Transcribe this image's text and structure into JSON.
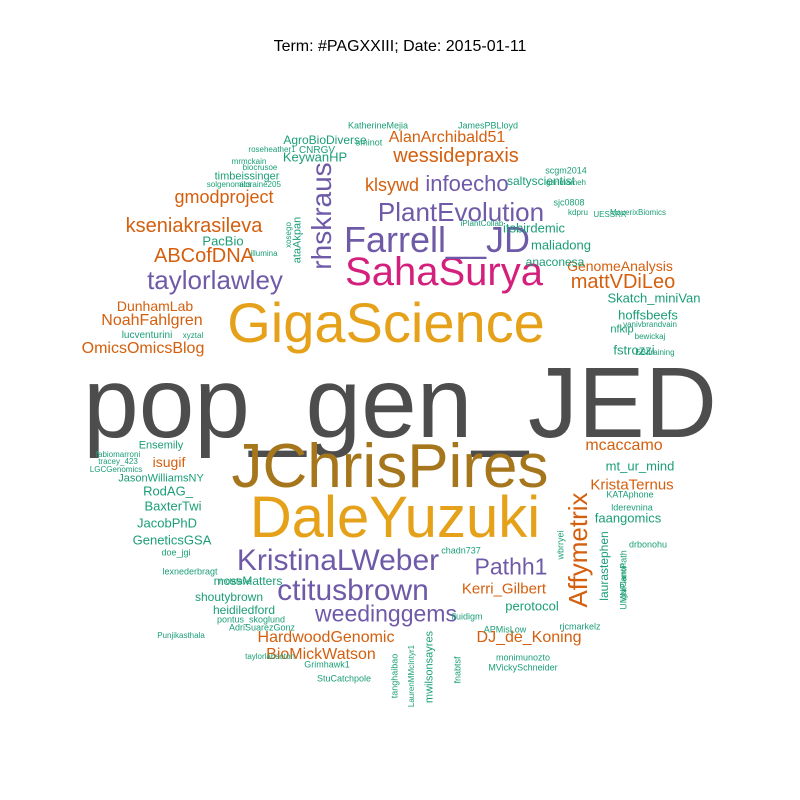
{
  "title": "Term: #PAGXXIII; Date: 2015-01-11",
  "colors": {
    "gray": "#4d4d4d",
    "orange": "#e6a11a",
    "brown": "#a6761d",
    "purple": "#6f5aa8",
    "magenta": "#d4207c",
    "rust": "#d45f0e",
    "green": "#1b9e77"
  },
  "words": [
    {
      "text": "pop_gen_JED",
      "color": "gray"
    },
    {
      "text": "JChrisPires",
      "color": "brown"
    },
    {
      "text": "DaleYuzuki",
      "color": "orange"
    },
    {
      "text": "GigaScience",
      "color": "orange"
    },
    {
      "text": "SahaSurya",
      "color": "magenta"
    },
    {
      "text": "Farrell__JD",
      "color": "purple"
    },
    {
      "text": "KristinaLWeber",
      "color": "purple"
    },
    {
      "text": "ctitusbrown",
      "color": "purple"
    },
    {
      "text": "taylorlawley",
      "color": "purple"
    },
    {
      "text": "PlantEvolution",
      "color": "purple"
    },
    {
      "text": "rhskraus",
      "color": "purple"
    },
    {
      "text": "weedinggems",
      "color": "purple"
    },
    {
      "text": "Affymetrix",
      "color": "rust"
    },
    {
      "text": "Pathh1",
      "color": "purple"
    },
    {
      "text": "infoecho",
      "color": "purple"
    },
    {
      "text": "kseniakrasileva",
      "color": "rust"
    },
    {
      "text": "ABCofDNA",
      "color": "rust"
    },
    {
      "text": "wessidepraxis",
      "color": "rust"
    },
    {
      "text": "mattVDiLeo",
      "color": "rust"
    },
    {
      "text": "gmodproject",
      "color": "rust"
    },
    {
      "text": "klsywd",
      "color": "rust"
    },
    {
      "text": "AlanArchibald51",
      "color": "rust"
    },
    {
      "text": "OmicsOmicsBlog",
      "color": "rust"
    },
    {
      "text": "NoahFahlgren",
      "color": "rust"
    },
    {
      "text": "mcaccamo",
      "color": "rust"
    },
    {
      "text": "HardwoodGenomic",
      "color": "rust"
    },
    {
      "text": "BioMickWatson",
      "color": "rust"
    },
    {
      "text": "DJ_de_Koning",
      "color": "rust"
    },
    {
      "text": "KristaTernus",
      "color": "rust"
    },
    {
      "text": "Kerri_Gilbert",
      "color": "rust"
    },
    {
      "text": "isugif",
      "color": "rust"
    },
    {
      "text": "DunhamLab",
      "color": "rust"
    },
    {
      "text": "GenomeAnalysis",
      "color": "rust"
    },
    {
      "text": "KeywanHP",
      "color": "green"
    },
    {
      "text": "itsbirdemic",
      "color": "green"
    },
    {
      "text": "PacBio",
      "color": "green"
    },
    {
      "text": "maliadong",
      "color": "green"
    },
    {
      "text": "mt_ur_mind",
      "color": "green"
    },
    {
      "text": "faangomics",
      "color": "green"
    },
    {
      "text": "BaxterTwi",
      "color": "green"
    },
    {
      "text": "JacobPhD",
      "color": "green"
    },
    {
      "text": "GeneticsGSA",
      "color": "green"
    },
    {
      "text": "RodAG_",
      "color": "green"
    },
    {
      "text": "perotocol",
      "color": "green"
    },
    {
      "text": "fstrozzi",
      "color": "green"
    },
    {
      "text": "hoffsbeefs",
      "color": "green"
    },
    {
      "text": "Skatch_miniVan",
      "color": "green"
    },
    {
      "text": "AgroBioDiverse",
      "color": "green"
    },
    {
      "text": "saltyscientist",
      "color": "green"
    },
    {
      "text": "anaconesa",
      "color": "green"
    },
    {
      "text": "laurastephen",
      "color": "green"
    },
    {
      "text": "shoutybrown",
      "color": "green"
    },
    {
      "text": "heidiledford",
      "color": "green"
    },
    {
      "text": "mossMatters",
      "color": "green"
    },
    {
      "text": "JasonWilliamsNY",
      "color": "green"
    },
    {
      "text": "Ensemily",
      "color": "green"
    },
    {
      "text": "timbeissinger",
      "color": "green"
    },
    {
      "text": "nfkip",
      "color": "green"
    },
    {
      "text": "CNRGV",
      "color": "green"
    },
    {
      "text": "KatherineMejia",
      "color": "green"
    },
    {
      "text": "JamesPBLloyd",
      "color": "green"
    },
    {
      "text": "sminot",
      "color": "green"
    },
    {
      "text": "roseheather1",
      "color": "green"
    },
    {
      "text": "mrmckain",
      "color": "green"
    },
    {
      "text": "biocrusoe",
      "color": "green"
    },
    {
      "text": "solgenomics",
      "color": "green"
    },
    {
      "text": "aloraine205",
      "color": "green"
    },
    {
      "text": "scgm2014",
      "color": "green"
    },
    {
      "text": "garimameh",
      "color": "green"
    },
    {
      "text": "sjc0808",
      "color": "green"
    },
    {
      "text": "kdpru",
      "color": "green"
    },
    {
      "text": "UESSRR",
      "color": "green"
    },
    {
      "text": "iPlantCollab",
      "color": "green"
    },
    {
      "text": "ataAkpan",
      "color": "green"
    },
    {
      "text": "xosego",
      "color": "green"
    },
    {
      "text": "illumina",
      "color": "green"
    },
    {
      "text": "MaverixBiomics",
      "color": "green"
    },
    {
      "text": "yanivbrandvain",
      "color": "green"
    },
    {
      "text": "bewickaj",
      "color": "green"
    },
    {
      "text": "EBItraining",
      "color": "green"
    },
    {
      "text": "lucventurini",
      "color": "green"
    },
    {
      "text": "xyztal",
      "color": "green"
    },
    {
      "text": "fabiomarroni",
      "color": "green"
    },
    {
      "text": "tracey_423",
      "color": "green"
    },
    {
      "text": "LGCGenomics",
      "color": "green"
    },
    {
      "text": "doe_jgi",
      "color": "green"
    },
    {
      "text": "lexnederbragt",
      "color": "green"
    },
    {
      "text": "mclafave",
      "color": "green"
    },
    {
      "text": "pontus_skoglund",
      "color": "green"
    },
    {
      "text": "AdriSuarezGonz",
      "color": "green"
    },
    {
      "text": "Punjikasthala",
      "color": "green"
    },
    {
      "text": "taylorlabsoton",
      "color": "green"
    },
    {
      "text": "Grimhawk1",
      "color": "green"
    },
    {
      "text": "StuCatchpole",
      "color": "green"
    },
    {
      "text": "chadn737",
      "color": "green"
    },
    {
      "text": "fluidigm",
      "color": "green"
    },
    {
      "text": "APMisLow",
      "color": "green"
    },
    {
      "text": "rjcmarkelz",
      "color": "green"
    },
    {
      "text": "monimunozto",
      "color": "green"
    },
    {
      "text": "MVickySchneider",
      "color": "green"
    },
    {
      "text": "KATAphone",
      "color": "green"
    },
    {
      "text": "lderevnina",
      "color": "green"
    },
    {
      "text": "drbonohu",
      "color": "green"
    },
    {
      "text": "wbrryei",
      "color": "green"
    },
    {
      "text": "UMNPlantPath",
      "color": "green"
    },
    {
      "text": "igorCarron",
      "color": "green"
    },
    {
      "text": "tanghaibao",
      "color": "green"
    },
    {
      "text": "LaurenMMcIntyr1",
      "color": "green"
    },
    {
      "text": "mwilsonsayres",
      "color": "green"
    },
    {
      "text": "fnabtsf",
      "color": "green"
    }
  ]
}
